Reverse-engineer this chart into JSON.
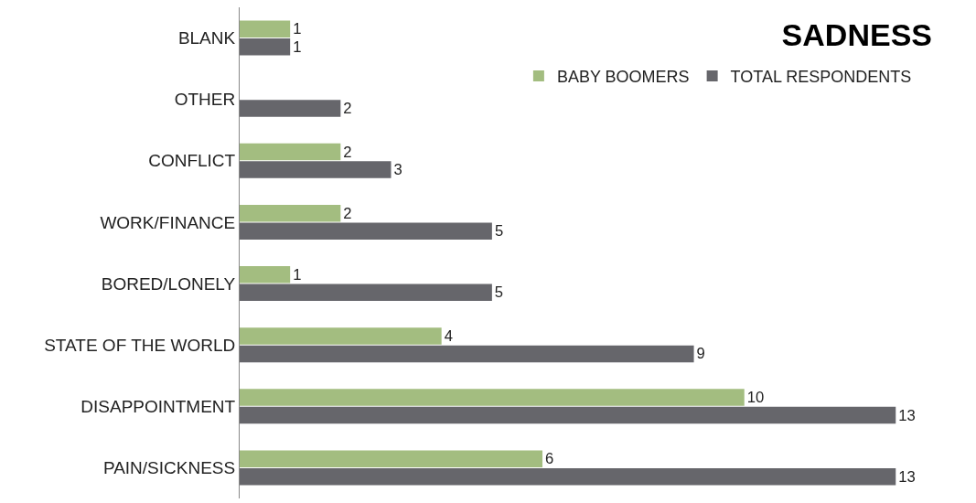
{
  "chart_data": {
    "type": "bar",
    "orientation": "horizontal",
    "title": "SADNESS",
    "categories": [
      "BLANK",
      "OTHER",
      "CONFLICT",
      "WORK/FINANCE",
      "BORED/LONELY",
      "STATE OF THE WORLD",
      "DISAPPOINTMENT",
      "PAIN/SICKNESS"
    ],
    "series": [
      {
        "name": "BABY BOOMERS",
        "color": "#a3bd80",
        "values": [
          1,
          null,
          2,
          2,
          1,
          4,
          10,
          6
        ]
      },
      {
        "name": "TOTAL RESPONDENTS",
        "color": "#66666b",
        "values": [
          1,
          2,
          3,
          5,
          5,
          9,
          13,
          13
        ]
      }
    ],
    "data_labels": true,
    "legend": "top right",
    "grid": false,
    "tick_labels": "y"
  }
}
